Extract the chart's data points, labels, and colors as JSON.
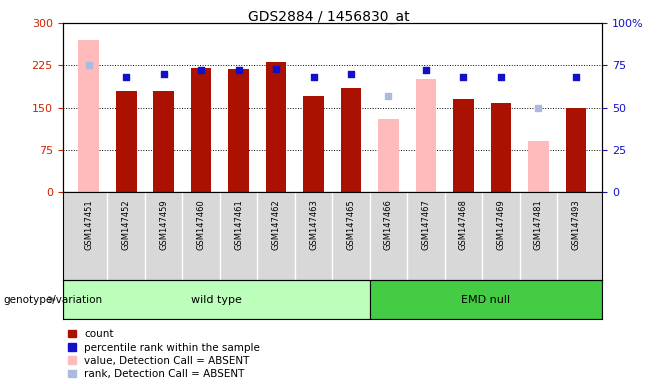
{
  "title": "GDS2884 / 1456830_at",
  "samples": [
    "GSM147451",
    "GSM147452",
    "GSM147459",
    "GSM147460",
    "GSM147461",
    "GSM147462",
    "GSM147463",
    "GSM147465",
    "GSM147466",
    "GSM147467",
    "GSM147468",
    "GSM147469",
    "GSM147481",
    "GSM147493"
  ],
  "count": [
    null,
    180,
    180,
    220,
    218,
    230,
    170,
    185,
    null,
    null,
    165,
    158,
    null,
    150
  ],
  "percentile_rank": [
    null,
    68,
    70,
    72,
    72,
    73,
    68,
    70,
    null,
    72,
    68,
    68,
    null,
    68
  ],
  "absent_value": [
    270,
    null,
    null,
    null,
    null,
    null,
    null,
    null,
    130,
    200,
    null,
    null,
    90,
    null
  ],
  "absent_rank": [
    75,
    null,
    null,
    null,
    null,
    null,
    null,
    null,
    57,
    null,
    null,
    null,
    50,
    null
  ],
  "n_wild_type": 8,
  "n_total": 14,
  "ylim_left": [
    0,
    300
  ],
  "ylim_right": [
    0,
    100
  ],
  "yticks_left": [
    0,
    75,
    150,
    225,
    300
  ],
  "yticks_right": [
    0,
    25,
    50,
    75,
    100
  ],
  "yticklabels_right": [
    "0",
    "25",
    "50",
    "75",
    "100%"
  ],
  "grid_lines": [
    75,
    150,
    225
  ],
  "bar_color_red": "#aa1100",
  "bar_color_pink": "#ffbbbb",
  "rank_color_blue": "#1111cc",
  "rank_color_lightblue": "#aabbdd",
  "bar_width": 0.55,
  "left_tick_color": "#cc2200",
  "right_tick_color": "#1111cc",
  "bg_color": "#ffffff",
  "plot_bg_color": "#ffffff",
  "xlabel_cell_color": "#d8d8d8",
  "xlabel_cell_line_color": "#aaaaaa",
  "legend_items": [
    "count",
    "percentile rank within the sample",
    "value, Detection Call = ABSENT",
    "rank, Detection Call = ABSENT"
  ],
  "legend_colors": [
    "#aa1100",
    "#1111cc",
    "#ffbbbb",
    "#aabbdd"
  ],
  "wt_bg": "#bbffbb",
  "emd_bg": "#44cc44",
  "genotype_label": "genotype/variation",
  "wt_label": "wild type",
  "emd_label": "EMD null"
}
